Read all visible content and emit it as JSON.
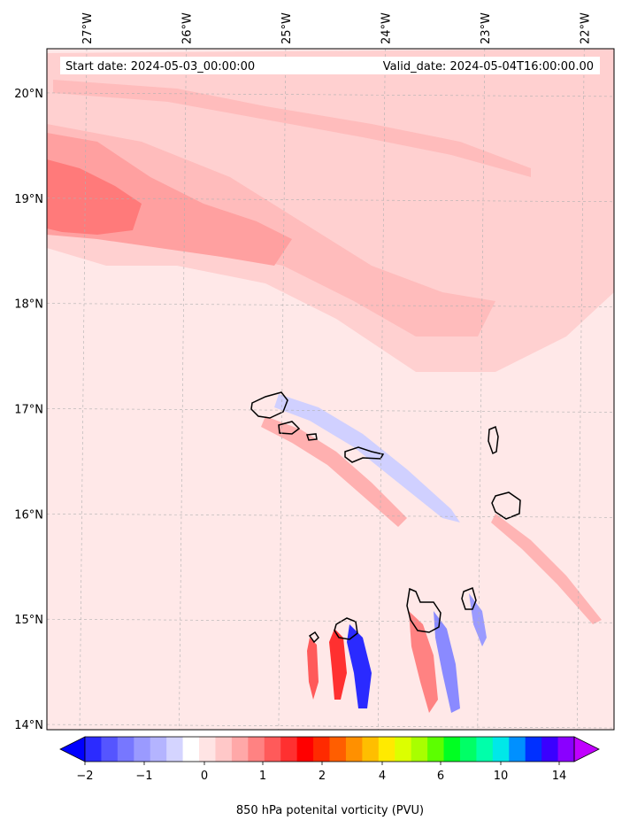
{
  "header": {
    "start_date": "Start date: 2024-05-03_00:00:00",
    "valid_date": "Valid_date: 2024-05-04T16:00:00.00"
  },
  "map": {
    "lon_labels": [
      {
        "lon": -27,
        "label": "27°W"
      },
      {
        "lon": -26,
        "label": "26°W"
      },
      {
        "lon": -25,
        "label": "25°W"
      },
      {
        "lon": -24,
        "label": "24°W"
      },
      {
        "lon": -23,
        "label": "23°W"
      },
      {
        "lon": -22,
        "label": "22°W"
      }
    ],
    "lat_labels": [
      {
        "lat": 20,
        "label": "20°N"
      },
      {
        "lat": 19,
        "label": "19°N"
      },
      {
        "lat": 18,
        "label": "18°N"
      },
      {
        "lat": 17,
        "label": "17°N"
      },
      {
        "lat": 16,
        "label": "16°N"
      },
      {
        "lat": 15,
        "label": "15°N"
      },
      {
        "lat": 14,
        "label": "14°N"
      }
    ],
    "extent": {
      "lon_min": -27.4,
      "lon_max": -21.7,
      "lat_min": 13.95,
      "lat_max": 20.42
    },
    "background_fill": "#ffe8e8",
    "band_colors": [
      "#ffd0d0",
      "#ffb4b4",
      "#ff8a8a"
    ]
  },
  "colorbar": {
    "label": "850 hPa potenital vorticity (PVU)",
    "tick_labels": [
      {
        "value": -2,
        "label": "−2"
      },
      {
        "value": -1,
        "label": "−1"
      },
      {
        "value": 0,
        "label": "0"
      },
      {
        "value": 1,
        "label": "1"
      },
      {
        "value": 2,
        "label": "2"
      },
      {
        "value": 4,
        "label": "4"
      },
      {
        "value": 6,
        "label": "6"
      },
      {
        "value": 10,
        "label": "10"
      },
      {
        "value": 14,
        "label": "14"
      }
    ],
    "colors": [
      "#0000ff",
      "#2b2bff",
      "#5555ff",
      "#7777ff",
      "#9a9aff",
      "#b4b4ff",
      "#d4d4ff",
      "#ffffff",
      "#ffe4e4",
      "#ffc8c8",
      "#ffa8a8",
      "#ff8282",
      "#ff5a5a",
      "#ff3030",
      "#ff0000",
      "#ff2a00",
      "#ff5e00",
      "#ff9000",
      "#ffbe00",
      "#ffea00",
      "#dcff00",
      "#a8ff00",
      "#5cff00",
      "#00ff22",
      "#00ff66",
      "#00ffaa",
      "#00e8e8",
      "#0090ff",
      "#0030ff",
      "#3a00ff",
      "#8a00ff",
      "#c000ff"
    ]
  }
}
